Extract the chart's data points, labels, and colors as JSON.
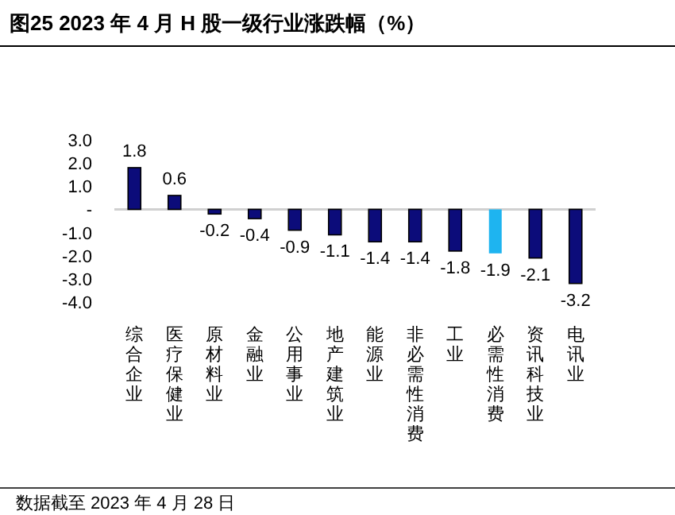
{
  "chart_data": {
    "type": "bar",
    "title": "图25 2023 年 4 月 H 股一级行业涨跌幅（%）",
    "categories": [
      "综合企业",
      "医疗保健业",
      "原材料业",
      "金融业",
      "公用事业",
      "地产建筑业",
      "能源业",
      "非必需性消费",
      "工业",
      "必需性消费",
      "资讯科技业",
      "电讯业"
    ],
    "values": [
      1.8,
      0.6,
      -0.2,
      -0.4,
      -0.9,
      -1.1,
      -1.4,
      -1.4,
      -1.8,
      -1.9,
      -2.1,
      -3.2
    ],
    "colors": [
      "#0c0c7a",
      "#0c0c7a",
      "#0c0c7a",
      "#0c0c7a",
      "#0c0c7a",
      "#0c0c7a",
      "#0c0c7a",
      "#0c0c7a",
      "#0c0c7a",
      "#1eb4f0",
      "#0c0c7a",
      "#0c0c7a"
    ],
    "ylim": [
      -4,
      3
    ],
    "yticks": [
      {
        "value": 3,
        "label": "3.0"
      },
      {
        "value": 2,
        "label": "2.0"
      },
      {
        "value": 1,
        "label": "1.0"
      },
      {
        "value": 0,
        "label": "-"
      },
      {
        "value": -1,
        "label": "-1.0"
      },
      {
        "value": -2,
        "label": "-2.0"
      },
      {
        "value": -3,
        "label": "-3.0"
      },
      {
        "value": -4,
        "label": "-4.0"
      }
    ],
    "data_labels": true,
    "annotations": [
      "数据截至 2023 年 4 月 28 日"
    ]
  }
}
